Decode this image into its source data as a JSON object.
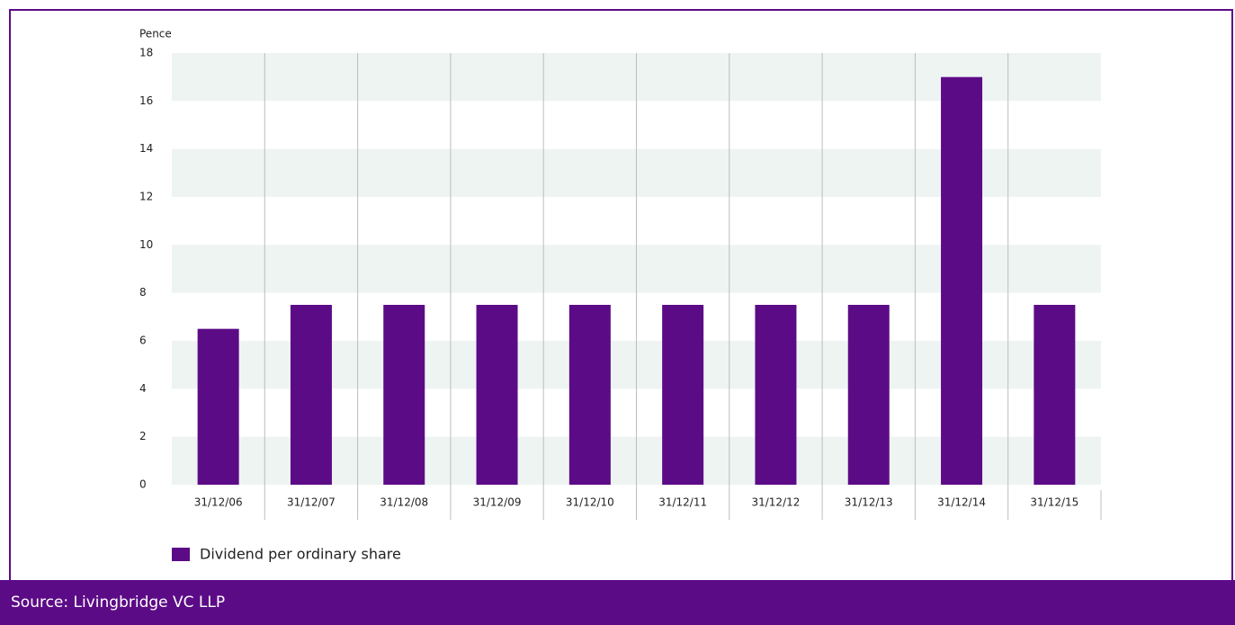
{
  "chart_data": {
    "type": "bar",
    "y_axis_label": "Pence",
    "categories": [
      "31/12/06",
      "31/12/07",
      "31/12/08",
      "31/12/09",
      "31/12/10",
      "31/12/11",
      "31/12/12",
      "31/12/13",
      "31/12/14",
      "31/12/15"
    ],
    "series": [
      {
        "name": "Dividend per ordinary share",
        "color": "#5c0b87",
        "values": [
          6.5,
          7.5,
          7.5,
          7.5,
          7.5,
          7.5,
          7.5,
          7.5,
          17,
          7.5
        ]
      }
    ],
    "ylim": [
      0,
      18
    ],
    "yticks": [
      0,
      2,
      4,
      6,
      8,
      10,
      12,
      14,
      16,
      18
    ],
    "grid": "bands",
    "legend": "bottom-left"
  },
  "source": "Source: Livingbridge VC LLP"
}
